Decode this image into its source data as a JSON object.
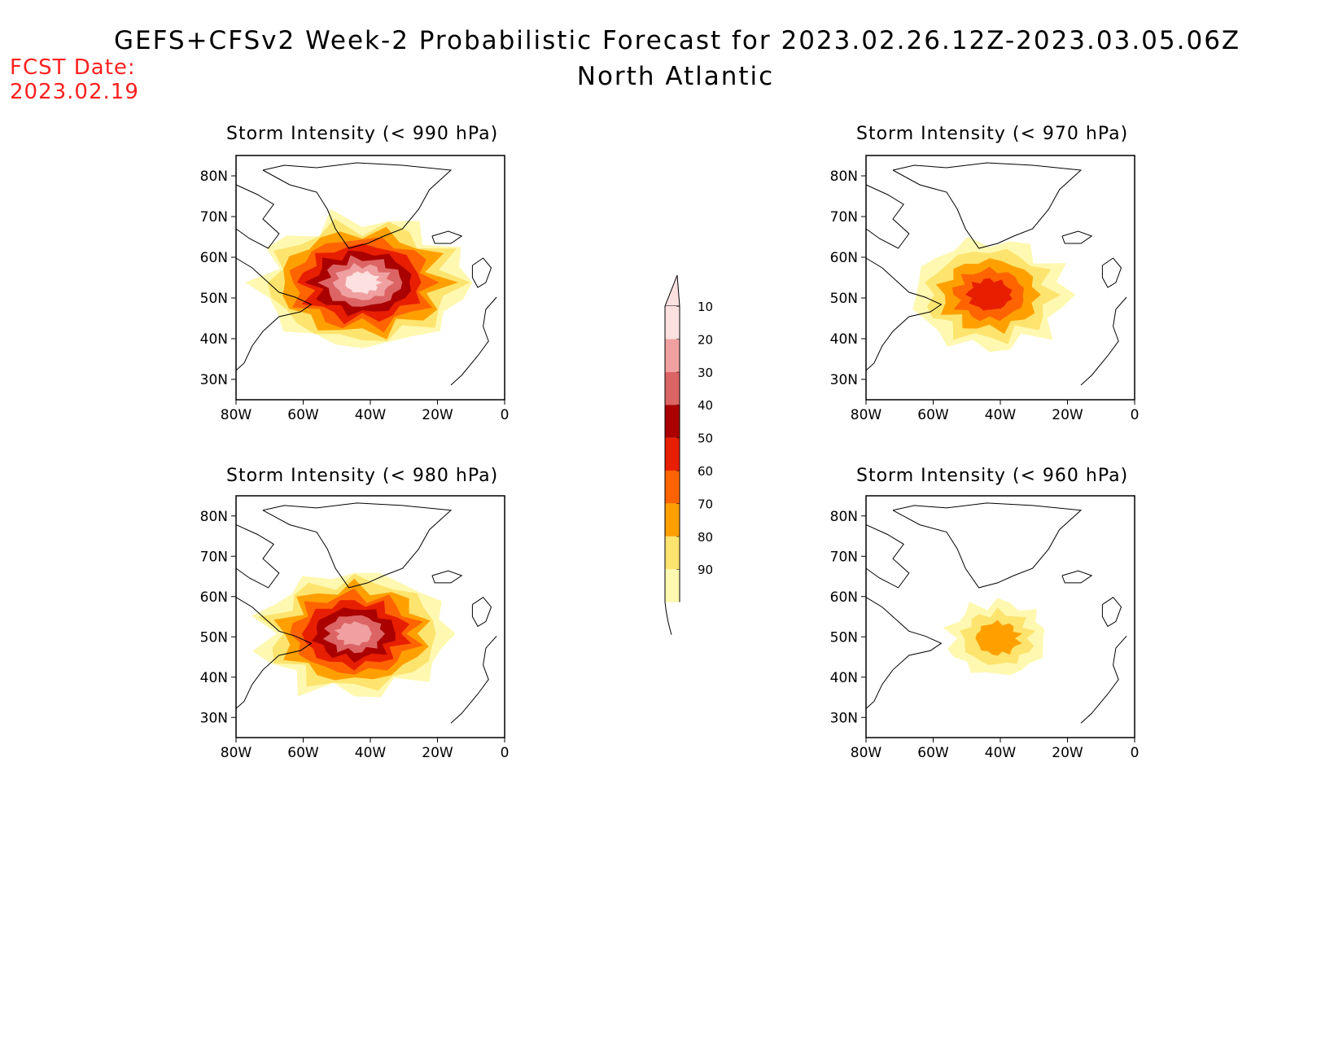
{
  "header": {
    "title": "GEFS+CFSv2 Week-2 Probabilistic Forecast for 2023.02.26.12Z-2023.03.05.06Z",
    "region": "North Atlantic",
    "fcst_label": "FCST Date:",
    "fcst_date": "2023.02.19"
  },
  "axes": {
    "lat_ticks": [
      "80N",
      "70N",
      "60N",
      "50N",
      "40N",
      "30N"
    ],
    "lon_ticks": [
      "80W",
      "60W",
      "40W",
      "20W",
      "0"
    ]
  },
  "colorbar": {
    "levels": [
      "10",
      "20",
      "30",
      "40",
      "50",
      "60",
      "70",
      "80",
      "90"
    ],
    "colors": [
      "#fff8b0",
      "#fde46e",
      "#ffa000",
      "#ff6400",
      "#e81e00",
      "#aa0000",
      "#dc6464",
      "#f0a0a0",
      "#fde0e0"
    ]
  },
  "panels": [
    {
      "id": "p990",
      "title": "Storm Intensity (< 990 hPa)",
      "peak_level": 9
    },
    {
      "id": "p970",
      "title": "Storm Intensity (< 970 hPa)",
      "peak_level": 5
    },
    {
      "id": "p980",
      "title": "Storm Intensity (< 980 hPa)",
      "peak_level": 8
    },
    {
      "id": "p960",
      "title": "Storm Intensity (< 960 hPa)",
      "peak_level": 3
    }
  ]
}
